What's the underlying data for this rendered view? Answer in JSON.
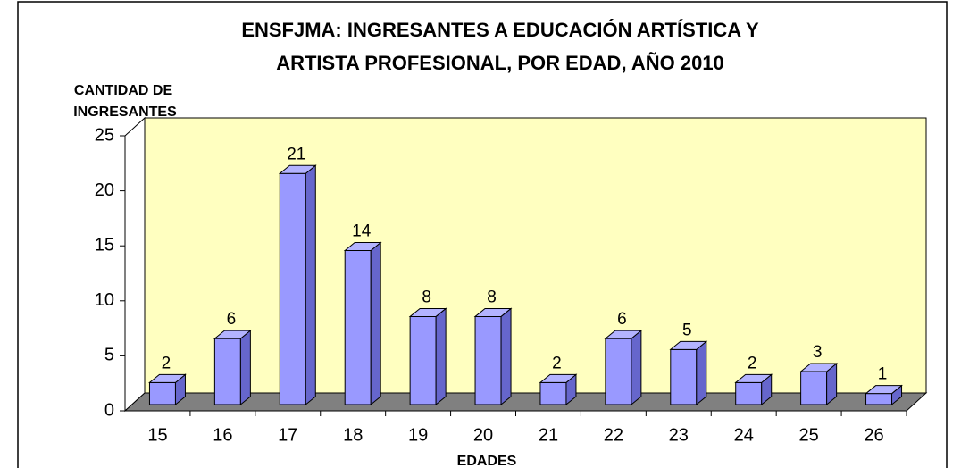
{
  "chart_data": {
    "type": "bar3d",
    "title": [
      "ENSFJMA: INGRESANTES A EDUCACIÓN ARTÍSTICA Y",
      "ARTISTA PROFESIONAL, POR EDAD, AÑO 2010"
    ],
    "y_label": [
      "CANTIDAD DE",
      "INGRESANTES"
    ],
    "x_label": "EDADES",
    "categories": [
      "15",
      "16",
      "17",
      "18",
      "19",
      "20",
      "21",
      "22",
      "23",
      "24",
      "25",
      "26"
    ],
    "values": [
      2,
      6,
      21,
      14,
      8,
      8,
      2,
      6,
      5,
      2,
      3,
      1
    ],
    "color": "#9999ff",
    "ylim": [
      0,
      25
    ],
    "yticks": [
      0,
      5,
      10,
      15,
      20,
      25
    ],
    "grid": false
  }
}
